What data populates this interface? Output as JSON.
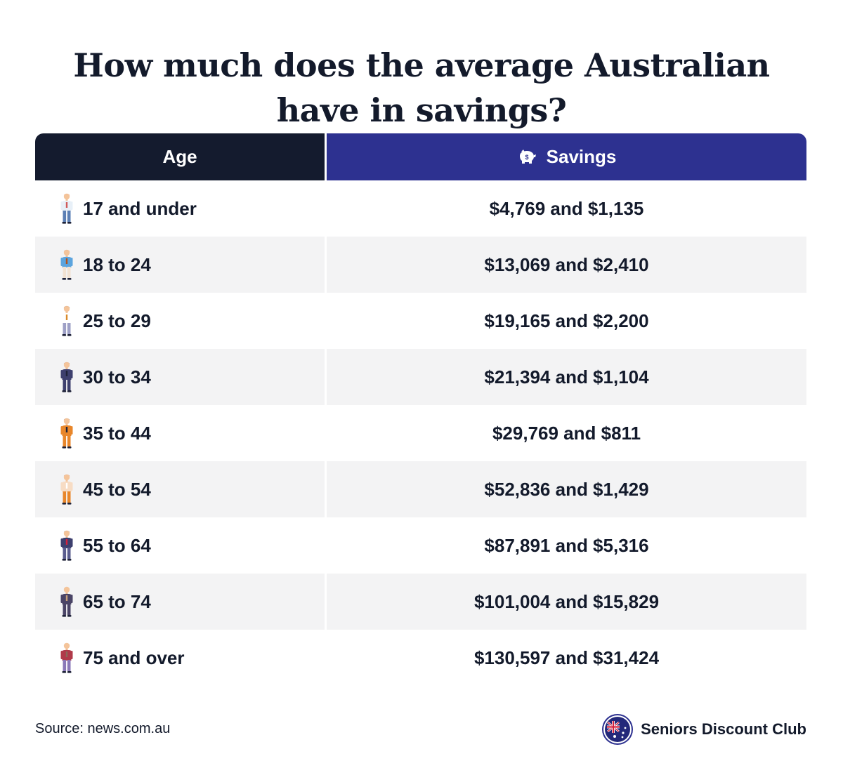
{
  "title_line1": "How much does the average Australian",
  "title_line2": "have in savings?",
  "chart_data": {
    "type": "table",
    "columns": [
      "Age",
      "Savings"
    ],
    "rows": [
      {
        "age": "17 and under",
        "savings": "$4,769 and $1,135"
      },
      {
        "age": "18 to 24",
        "savings": "$13,069 and $2,410"
      },
      {
        "age": "25 to 29",
        "savings": "$19,165 and $2,200"
      },
      {
        "age": "30 to 34",
        "savings": "$21,394 and $1,104"
      },
      {
        "age": "35 to 44",
        "savings": "$29,769 and $811"
      },
      {
        "age": "45 to 54",
        "savings": "$52,836 and $1,429"
      },
      {
        "age": "55 to 64",
        "savings": "$87,891 and $5,316"
      },
      {
        "age": "65 to 74",
        "savings": "$101,004 and $15,829"
      },
      {
        "age": "75 and over",
        "savings": "$130,597 and $31,424"
      }
    ]
  },
  "header_icon": "piggy-bank-icon",
  "row_icons": [
    "child-figure-icon",
    "young-man-figure-icon",
    "man-with-bag-figure-icon",
    "man-figure-icon",
    "man-with-phone-figure-icon",
    "woman-figure-icon",
    "bald-man-figure-icon",
    "elderly-woman-with-cane-icon",
    "elderly-man-with-cane-icon"
  ],
  "source": "Source: news.com.au",
  "brand_name": "Seniors Discount Club",
  "brand_icon": "australian-flag-logo-icon",
  "colors": {
    "age_header_bg": "#141b2e",
    "savings_header_bg": "#2d3190",
    "row_shade": "#f3f3f4",
    "text": "#131a2b"
  }
}
